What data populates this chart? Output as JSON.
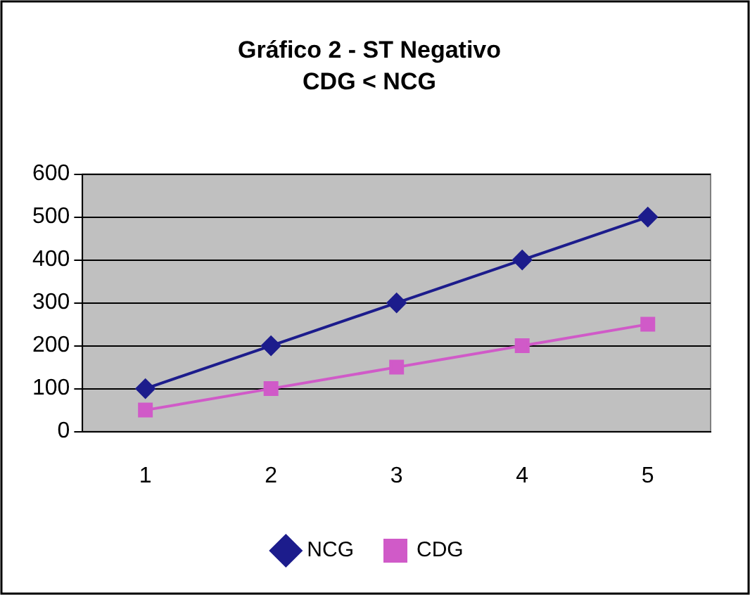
{
  "chart_data": {
    "type": "line",
    "title": "Gráfico 2 - ST Negativo",
    "subtitle": "CDG < NCG",
    "categories": [
      "1",
      "2",
      "3",
      "4",
      "5"
    ],
    "series": [
      {
        "name": "NCG",
        "color": "#1c1c8c",
        "marker": "diamond",
        "values": [
          100,
          200,
          300,
          400,
          500
        ]
      },
      {
        "name": "CDG",
        "color": "#d05ac8",
        "marker": "square",
        "values": [
          50,
          100,
          150,
          200,
          250
        ]
      }
    ],
    "ylim": [
      0,
      600
    ],
    "yticks": [
      0,
      100,
      200,
      300,
      400,
      500,
      600
    ],
    "grid": "y",
    "legend": "bottom"
  }
}
